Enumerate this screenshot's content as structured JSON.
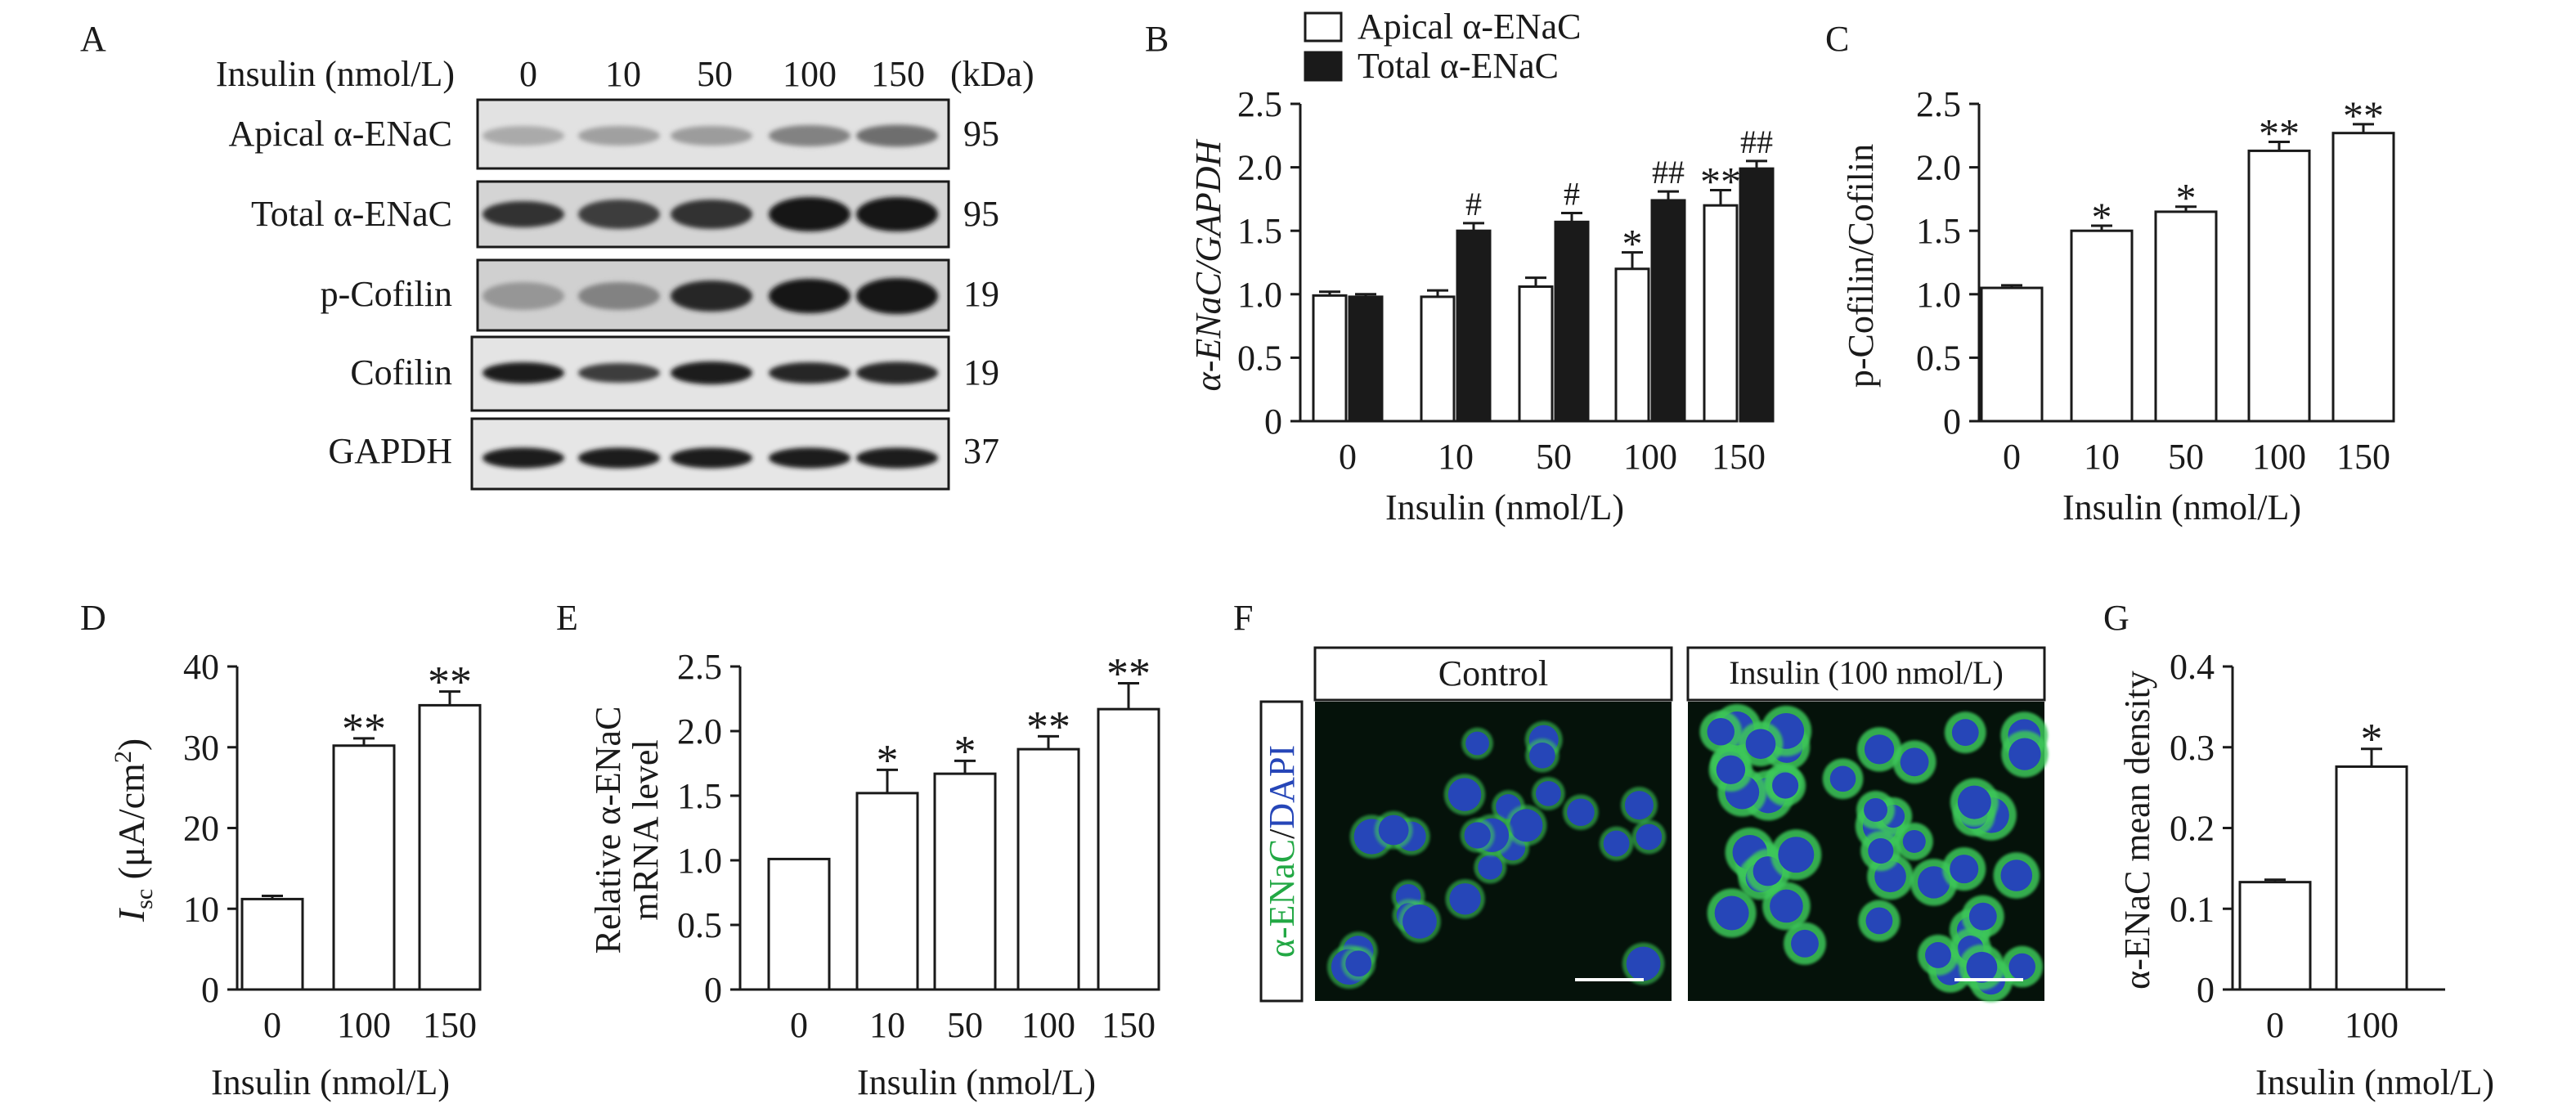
{
  "colors": {
    "ink": "#1a1a1a",
    "bar_white": "#ffffff",
    "bar_black": "#1a1a1a",
    "micro_bg": "#05120a",
    "green": "#3cc85a",
    "blue": "#2646b8",
    "blot_bg": "#dcdcdc",
    "band": "#202020"
  },
  "panels": {
    "A": "A",
    "B": "B",
    "C": "C",
    "D": "D",
    "E": "E",
    "F": "F",
    "G": "G"
  },
  "western": {
    "header_label": "Insulin (nmol/L)",
    "doses": [
      "0",
      "10",
      "50",
      "100",
      "150"
    ],
    "kda_header": "(kDa)",
    "rows": [
      {
        "label": "Apical α-ENaC",
        "kda": "95",
        "intensity": [
          0.25,
          0.3,
          0.32,
          0.45,
          0.55
        ],
        "thickness": [
          0.25,
          0.25,
          0.25,
          0.3,
          0.32
        ]
      },
      {
        "label": "Total α-ENaC",
        "kda": "95",
        "intensity": [
          0.85,
          0.8,
          0.85,
          1.0,
          1.0
        ],
        "thickness": [
          0.45,
          0.55,
          0.55,
          0.7,
          0.7
        ]
      },
      {
        "label": "p-Cofilin",
        "kda": "19",
        "intensity": [
          0.35,
          0.45,
          0.9,
          1.0,
          1.0
        ],
        "thickness": [
          0.5,
          0.5,
          0.6,
          0.7,
          0.75
        ]
      },
      {
        "label": "Cofilin",
        "kda": "19",
        "intensity": [
          0.95,
          0.8,
          0.95,
          0.9,
          0.9
        ],
        "thickness": [
          0.3,
          0.25,
          0.35,
          0.3,
          0.33
        ]
      },
      {
        "label": "GAPDH",
        "kda": "37",
        "intensity": [
          0.95,
          0.95,
          0.95,
          0.95,
          0.95
        ],
        "thickness": [
          0.28,
          0.28,
          0.28,
          0.28,
          0.28
        ]
      }
    ]
  },
  "chart_data": [
    {
      "panel": "B",
      "type": "bar",
      "xlabel": "Insulin (nmol/L)",
      "ylabel": "α-ENaC/GAPDH",
      "categories": [
        "0",
        "10",
        "50",
        "100",
        "150"
      ],
      "ylim": [
        0,
        2.5
      ],
      "yticks": [
        "0",
        "0.5",
        "1.0",
        "1.5",
        "2.0",
        "2.5"
      ],
      "legend": {
        "placement": "top",
        "entries": [
          "Apical α-ENaC",
          "Total α-ENaC"
        ]
      },
      "series": [
        {
          "name": "Apical α-ENaC",
          "fill": "white",
          "values": [
            0.99,
            0.98,
            1.06,
            1.2,
            1.7
          ],
          "errors": [
            0.03,
            0.05,
            0.07,
            0.13,
            0.12
          ],
          "labels": [
            "",
            "",
            "",
            "*",
            "**"
          ]
        },
        {
          "name": "Total α-ENaC",
          "fill": "black",
          "values": [
            0.98,
            1.5,
            1.57,
            1.74,
            1.99
          ],
          "errors": [
            0.02,
            0.06,
            0.07,
            0.07,
            0.06
          ],
          "labels": [
            "",
            "#",
            "#",
            "##",
            "##"
          ]
        }
      ]
    },
    {
      "panel": "C",
      "type": "bar",
      "xlabel": "Insulin (nmol/L)",
      "ylabel": "p-Cofilin/Cofilin",
      "categories": [
        "0",
        "10",
        "50",
        "100",
        "150"
      ],
      "ylim": [
        0,
        2.5
      ],
      "yticks": [
        "0",
        "0.5",
        "1.0",
        "1.5",
        "2.0",
        "2.5"
      ],
      "series": [
        {
          "name": "p-Cofilin/Cofilin",
          "fill": "white",
          "values": [
            1.05,
            1.5,
            1.65,
            2.13,
            2.27
          ],
          "errors": [
            0.02,
            0.04,
            0.04,
            0.07,
            0.07
          ],
          "labels": [
            "",
            "*",
            "*",
            "**",
            "**"
          ]
        }
      ]
    },
    {
      "panel": "D",
      "type": "bar",
      "xlabel": "Insulin (nmol/L)",
      "ylabel_italic": "I",
      "ylabel_sub": "sc",
      "ylabel_rest": " (μA/cm",
      "ylabel_sup": "2",
      "ylabel_end": ")",
      "categories": [
        "0",
        "100",
        "150"
      ],
      "ylim": [
        0,
        40
      ],
      "yticks": [
        "0",
        "10",
        "20",
        "30",
        "40"
      ],
      "series": [
        {
          "name": "Isc",
          "fill": "white",
          "values": [
            11.2,
            30.2,
            35.2
          ],
          "errors": [
            0.4,
            0.9,
            1.7
          ],
          "labels": [
            "",
            "**",
            "**"
          ]
        }
      ]
    },
    {
      "panel": "E",
      "type": "bar",
      "xlabel": "Insulin (nmol/L)",
      "ylabel_line1": "Relative α-ENaC",
      "ylabel_line2": "mRNA level",
      "categories": [
        "0",
        "10",
        "50",
        "100",
        "150"
      ],
      "ylim": [
        0,
        2.5
      ],
      "yticks": [
        "0",
        "0.5",
        "1.0",
        "1.5",
        "2.0",
        "2.5"
      ],
      "series": [
        {
          "name": "Relative mRNA",
          "fill": "white",
          "values": [
            1.01,
            1.52,
            1.67,
            1.86,
            2.17
          ],
          "errors": [
            0.0,
            0.18,
            0.1,
            0.1,
            0.2
          ],
          "labels": [
            "",
            "*",
            "*",
            "**",
            "**"
          ]
        }
      ]
    },
    {
      "panel": "G",
      "type": "bar",
      "xlabel": "Insulin (nmol/L)",
      "ylabel": "α-ENaC mean density",
      "categories": [
        "0",
        "100"
      ],
      "ylim": [
        0,
        0.4
      ],
      "yticks": [
        "0",
        "0.1",
        "0.2",
        "0.3",
        "0.4"
      ],
      "series": [
        {
          "name": "mean density",
          "fill": "white",
          "values": [
            0.133,
            0.276
          ],
          "errors": [
            0.003,
            0.022
          ],
          "labels": [
            "",
            "*"
          ]
        }
      ]
    }
  ],
  "micro": {
    "ylabel_green": "α-ENaC",
    "ylabel_sep": "/",
    "ylabel_blue": "DAPI",
    "panels": [
      {
        "title": "Control"
      },
      {
        "title": "Insulin (100 nmol/L)"
      }
    ]
  }
}
